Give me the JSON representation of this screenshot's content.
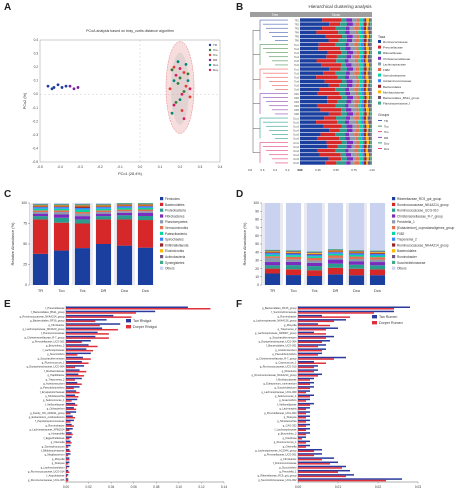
{
  "panel_letters": [
    "A",
    "B",
    "C",
    "D",
    "E",
    "F"
  ],
  "chart_data": [
    {
      "panel": "A",
      "type": "scatter",
      "title": "PCoA analysis based on bray_curtis distance algorithm",
      "xlabel": "PCo1 (28.4%)",
      "ylabel": "PCo2 (%)",
      "xlim": [
        -0.5,
        0.4
      ],
      "ylim": [
        -0.5,
        0.4
      ],
      "x_ticks": [
        "-0.5",
        "-0.4",
        "-0.3",
        "-0.2",
        "-0.1",
        "0.0",
        "0.1",
        "0.2",
        "0.3",
        "0.4"
      ],
      "y_ticks": [
        "0.4",
        "0.3",
        "0.2",
        "0.1",
        "0.0",
        "-0.1",
        "-0.2",
        "-0.3",
        "-0.4",
        "-0.5"
      ],
      "legend": [
        "TR",
        "Tco",
        "Tcs",
        "DR",
        "Dco",
        "Dcs"
      ],
      "colors": [
        "#1f3e9c",
        "#2e7d32",
        "#e53935",
        "#7b1fa2",
        "#00897b",
        "#d81b60"
      ],
      "series": [
        {
          "name": "TR",
          "points": [
            [
              -0.46,
              0.06
            ],
            [
              -0.43,
              0.05
            ],
            [
              -0.41,
              0.07
            ],
            [
              -0.39,
              0.05
            ],
            [
              -0.37,
              0.06
            ],
            [
              -0.44,
              0.04
            ]
          ]
        },
        {
          "name": "Tco",
          "points": [
            [
              0.16,
              0.18
            ],
            [
              0.2,
              0.12
            ],
            [
              0.22,
              0.02
            ],
            [
              0.18,
              -0.06
            ],
            [
              0.24,
              0.15
            ],
            [
              0.19,
              0.08
            ]
          ]
        },
        {
          "name": "Tcs",
          "points": [
            [
              0.17,
              0.2
            ],
            [
              0.23,
              0.06
            ],
            [
              0.21,
              -0.12
            ],
            [
              0.25,
              -0.02
            ],
            [
              0.15,
              0.04
            ],
            [
              0.22,
              0.16
            ]
          ]
        },
        {
          "name": "DR",
          "points": [
            [
              -0.33,
              0.04
            ],
            [
              -0.35,
              0.06
            ],
            [
              -0.31,
              0.05
            ]
          ]
        },
        {
          "name": "Dco",
          "points": [
            [
              0.17,
              0.1
            ],
            [
              0.23,
              0.22
            ],
            [
              0.2,
              -0.04
            ],
            [
              0.16,
              -0.14
            ],
            [
              0.24,
              0.1
            ],
            [
              0.19,
              0.24
            ]
          ]
        },
        {
          "name": "Dcs",
          "points": [
            [
              0.21,
              0.0
            ],
            [
              0.18,
              0.14
            ],
            [
              0.25,
              0.04
            ],
            [
              0.17,
              -0.08
            ],
            [
              0.22,
              -0.18
            ],
            [
              0.2,
              0.19
            ]
          ]
        }
      ]
    },
    {
      "panel": "B",
      "type": "bar",
      "title": "Hierarchical clustering analysis",
      "orientation": "horizontal-stacked",
      "header_left": "Tree",
      "header_right": "Taxon",
      "taxa": [
        "Ruminococcaceae",
        "Prevotellaceae",
        "Rikenellaceae",
        "Christensenellaceae",
        "Lachnospiraceae",
        "F082",
        "Spirochaetaceae",
        "Acidaminococcaceae",
        "Bacteroidales",
        "Muribaculaceae",
        "Bacteroidales_BS11_group",
        "Flavobacteriaceae_f"
      ],
      "taxa_legend_title": "Taxa",
      "taxa_colors": [
        "#1a3f9e",
        "#d62828",
        "#2a9d8f",
        "#7b2cbf",
        "#8d99ae",
        "#e76f51",
        "#06d6a0",
        "#3a86ff",
        "#9b2226",
        "#ffb703",
        "#6d597a",
        "#43aa8b"
      ],
      "groups_legend_title": "Groups",
      "groups": [
        "TR",
        "Tco",
        "Tcs",
        "DR",
        "Dco",
        "Dcs"
      ],
      "group_colors": [
        "#1f3e9c",
        "#2e7d32",
        "#e53935",
        "#7b1fa2",
        "#00897b",
        "#d81b60"
      ],
      "tree_ticks": [
        "0.8",
        "0.6",
        "0.4",
        "0.2",
        "0.0"
      ],
      "bar_ticks": [
        "0.00",
        "0.25",
        "0.50",
        "0.75",
        "1.00"
      ],
      "samples": [
        "TR1",
        "TR2",
        "TR3",
        "TR4",
        "TR5",
        "TR6",
        "Tco1",
        "Tco2",
        "Tco3",
        "Tco4",
        "Tco5",
        "Tco6",
        "Tcs1",
        "Tcs2",
        "Tcs3",
        "Tcs4",
        "Tcs5",
        "Tcs6",
        "DR1",
        "DR2",
        "DR3",
        "DR4",
        "DR5",
        "DR6",
        "Dco1",
        "Dco2",
        "Dco3",
        "Dco4",
        "Dco5",
        "Dco6",
        "Dcs1",
        "Dcs2",
        "Dcs3",
        "Dcs4",
        "Dcs5",
        "Dcs6"
      ]
    },
    {
      "panel": "C",
      "type": "bar",
      "orientation": "vertical-stacked",
      "ylabel": "Relative Abundance (%)",
      "ylim": [
        0,
        100
      ],
      "y_ticks": [
        "0",
        "25",
        "50",
        "75",
        "100"
      ],
      "categories": [
        "TR",
        "Tco",
        "Tcs",
        "DR",
        "Dco",
        "Dcs"
      ],
      "series": [
        {
          "name": "Firmicutes",
          "color": "#1a3f9e",
          "values": [
            38,
            42,
            45,
            50,
            48,
            46
          ]
        },
        {
          "name": "Bacteroidetes",
          "color": "#d62828",
          "values": [
            42,
            34,
            30,
            30,
            32,
            34
          ]
        },
        {
          "name": "Proteobacteria",
          "color": "#2a9d8f",
          "values": [
            4,
            6,
            5,
            4,
            5,
            5
          ]
        },
        {
          "name": "Fibrobacteres",
          "color": "#7b2cbf",
          "values": [
            3,
            4,
            4,
            3,
            3,
            4
          ]
        },
        {
          "name": "Planctomycetes",
          "color": "#8d99ae",
          "values": [
            2,
            3,
            3,
            2,
            2,
            2
          ]
        },
        {
          "name": "Verrucomicrobia",
          "color": "#e76f51",
          "values": [
            2,
            2,
            2,
            2,
            2,
            2
          ]
        },
        {
          "name": "Patescibacteria",
          "color": "#06d6a0",
          "values": [
            2,
            2,
            3,
            2,
            2,
            2
          ]
        },
        {
          "name": "Spirochaetes",
          "color": "#3a86ff",
          "values": [
            2,
            2,
            2,
            2,
            2,
            2
          ]
        },
        {
          "name": "Kiritimatiellaeota",
          "color": "#9b2226",
          "values": [
            1,
            1,
            2,
            1,
            1,
            1
          ]
        },
        {
          "name": "Elusimicrobia",
          "color": "#ffb703",
          "values": [
            1,
            1,
            1,
            1,
            1,
            1
          ]
        },
        {
          "name": "Actinobacteria",
          "color": "#6d597a",
          "values": [
            1,
            1,
            1,
            1,
            1,
            1
          ]
        },
        {
          "name": "Synergistetes",
          "color": "#43aa8b",
          "values": [
            1,
            1,
            1,
            1,
            1,
            1
          ]
        },
        {
          "name": "Others",
          "color": "#c9d3f0",
          "values": [
            1,
            1,
            1,
            1,
            0,
            0
          ]
        }
      ]
    },
    {
      "panel": "D",
      "type": "bar",
      "orientation": "vertical-stacked",
      "ylabel": "Relative Abundance (%)",
      "ylim": [
        0,
        100
      ],
      "y_ticks": [
        "0",
        "10",
        "20",
        "30",
        "40",
        "50",
        "60",
        "70",
        "80",
        "90",
        "100"
      ],
      "categories": [
        "TR",
        "Tco",
        "Tcs",
        "DR",
        "Dco",
        "Dcs"
      ],
      "series": [
        {
          "name": "Rikenellaceae_RC9_gut_group",
          "color": "#1a3f9e",
          "values": [
            14,
            12,
            11,
            13,
            12,
            12
          ]
        },
        {
          "name": "Ruminococcaceae_NK4A214_group",
          "color": "#d62828",
          "values": [
            6,
            7,
            7,
            8,
            8,
            7
          ]
        },
        {
          "name": "Ruminococcaceae_UCG-010",
          "color": "#2a9d8f",
          "values": [
            4,
            5,
            5,
            5,
            5,
            5
          ]
        },
        {
          "name": "Christensenellaceae_R-7_group",
          "color": "#7b2cbf",
          "values": [
            4,
            4,
            4,
            5,
            4,
            4
          ]
        },
        {
          "name": "Prevotella_1",
          "color": "#8d99ae",
          "values": [
            5,
            3,
            3,
            2,
            3,
            3
          ]
        },
        {
          "name": "[Eubacterium]_coprostanoligenes_group",
          "color": "#e76f51",
          "values": [
            2,
            3,
            3,
            3,
            3,
            3
          ]
        },
        {
          "name": "F082",
          "color": "#06d6a0",
          "values": [
            2,
            2,
            2,
            2,
            2,
            2
          ]
        },
        {
          "name": "Treponema_2",
          "color": "#3a86ff",
          "values": [
            2,
            2,
            2,
            2,
            2,
            2
          ]
        },
        {
          "name": "Ruminococcaceae_NK4A214_group",
          "color": "#9b2226",
          "values": [
            1,
            1,
            1,
            1,
            1,
            1
          ]
        },
        {
          "name": "Bacteroidales",
          "color": "#ffb703",
          "values": [
            1,
            1,
            1,
            1,
            1,
            1
          ]
        },
        {
          "name": "Ruminobacter",
          "color": "#6d597a",
          "values": [
            1,
            1,
            1,
            1,
            1,
            1
          ]
        },
        {
          "name": "Succinivibrionaceae",
          "color": "#43aa8b",
          "values": [
            1,
            1,
            1,
            1,
            1,
            1
          ]
        },
        {
          "name": "Others",
          "color": "#c9d3f0",
          "values": [
            57,
            57,
            59,
            56,
            58,
            58
          ]
        }
      ]
    },
    {
      "panel": "E",
      "type": "bar",
      "orientation": "horizontal-grouped",
      "legend": [
        "Tan Rhdgut",
        "Dorper Rhdgut"
      ],
      "colors": [
        "#2b3a9c",
        "#e0303a"
      ],
      "xlim": [
        0,
        0.14
      ],
      "x_ticks": [
        "0.00",
        "0.02",
        "0.04",
        "0.06",
        "0.08",
        "0.10",
        "0.12",
        "0.14"
      ],
      "categories": [
        "f_Prevotellaceae",
        "f_Bacteroidales_BS11_group",
        "g_Ruminococcaceae_NK4A214_group",
        "g_Bacteroidales_RF16_group",
        "g_Fibrobacter",
        "g_Lachnospiraceae_NK3A20_group",
        "f_Ruminococcaceae",
        "g_Christensenellaceae_R-7_group",
        "g_Prevotellaceae_UCG-001",
        "g_Butyrivibrio_2",
        "f_Lachnospiraceae",
        "g_Succinivibrio",
        "g_Saccharofermentans",
        "g_Ruminococcus_1",
        "g_Erysipelotrichaceae_UCG-004",
        "f_Muribaculaceae",
        "g_Papillibacter",
        "g_Treponema_2",
        "g_Acetitomaculum",
        "g_Pseudobutyrivibrio",
        "f_Erysipelotrichaceae",
        "g_Shuttleworthia",
        "g_Selenomonas_1",
        "f_Veillonellaceae",
        "g_Oribacterium",
        "g_Family_XIII_AD3011_group",
        "g_Eubacterium_oxidoreducens",
        "f_Peptostreptococcaceae",
        "g_Ruminobacter",
        "g_Lachnospiraceae_XPB1014",
        "g_Howardella",
        "f_Eggerthellaceae",
        "g_Olsenella",
        "g_Syntrophococcus",
        "f_Bifidobacteriaceae",
        "g_Mogibacterium",
        "g_Moryella",
        "g_Sharpea",
        "g_Lachnoclostridium",
        "g_Ruminococcaceae_UCG-014",
        "f_Atopobiaceae",
        "g_Ruminococcaceae_UCG-005"
      ],
      "series": [
        {
          "name": "Tan Rhdgut",
          "values": [
            0.108,
            0.079,
            0.042,
            0.036,
            0.048,
            0.032,
            0.028,
            0.026,
            0.022,
            0.02,
            0.018,
            0.022,
            0.015,
            0.014,
            0.016,
            0.012,
            0.011,
            0.014,
            0.01,
            0.012,
            0.009,
            0.008,
            0.01,
            0.008,
            0.007,
            0.009,
            0.006,
            0.007,
            0.005,
            0.006,
            0.005,
            0.005,
            0.004,
            0.004,
            0.003,
            0.004,
            0.003,
            0.003,
            0.003,
            0.002,
            0.002,
            0.002
          ]
        },
        {
          "name": "Dorper Rhdgut",
          "values": [
            0.128,
            0.062,
            0.058,
            0.026,
            0.03,
            0.046,
            0.038,
            0.038,
            0.014,
            0.028,
            0.024,
            0.01,
            0.022,
            0.02,
            0.008,
            0.018,
            0.016,
            0.008,
            0.014,
            0.007,
            0.012,
            0.011,
            0.005,
            0.01,
            0.009,
            0.004,
            0.008,
            0.004,
            0.007,
            0.003,
            0.006,
            0.003,
            0.005,
            0.002,
            0.004,
            0.002,
            0.003,
            0.002,
            0.001,
            0.003,
            0.001,
            0.002
          ]
        }
      ]
    },
    {
      "panel": "F",
      "type": "bar",
      "orientation": "horizontal-grouped",
      "legend": [
        "Tan Rumen",
        "Dorper Rumen"
      ],
      "colors": [
        "#2b3a9c",
        "#e0303a"
      ],
      "xlim": [
        0,
        0.03
      ],
      "x_ticks": [
        "0.00",
        "0.01",
        "0.02",
        "0.03"
      ],
      "categories": [
        "g_Bacteroidales_RF16_group",
        "f_Succinivibrionaceae",
        "g_Ruminobacter",
        "g_Lachnospiraceae_NK4A136_group",
        "g_Moryella",
        "g_Treponema_2",
        "g_Lachnospiraceae_ND3007_group",
        "g_Saccharofermentans",
        "g_Erysipelotrichaceae_UCG-004",
        "f_Bacteroidales_UCG-001",
        "g_Acetitomaculum",
        "g_Pseudobutyrivibrio",
        "g_Christensenellaceae_R-7_group",
        "g_Coprococcus_1",
        "g_Ruminococcaceae_UCG-010",
        "g_Roseburia",
        "g_Ruminococcaceae_NK4A214_group",
        "f_Muribaculaceae",
        "g_Eubacterium_ruminantium",
        "g_Succiniclasticum",
        "g_Lachnospiraceae_UCG-009",
        "g_Selenomonas_1",
        "g_Anaerovibrio",
        "f_Veillonellaceae",
        "g_Lachnospira",
        "g_Prevotellaceae_UCG-003",
        "g_Sharpea",
        "g_Shuttleworthia",
        "g_CAG-352",
        "f_Lachnospiraceae",
        "g_Butyrivibrio_2",
        "g_Flexilinea",
        "g_Ruminococcus_1",
        "g_Olsenella",
        "g_Lachnospiraceae_AC2044_group",
        "g_Prevotellaceae_UCG-001",
        "g_Fibrobacter",
        "f_Ruminococcaceae",
        "g_Succinivibrio",
        "g_Prevotella_1",
        "g_Rikenellaceae_RC9_gut_group",
        "g_Succinivibrionaceae_UCG-002"
      ],
      "series": [
        {
          "name": "Tan Rumen",
          "values": [
            0.028,
            0.024,
            0.006,
            0.012,
            0.005,
            0.01,
            0.004,
            0.009,
            0.008,
            0.007,
            0.007,
            0.006,
            0.012,
            0.004,
            0.005,
            0.005,
            0.006,
            0.004,
            0.004,
            0.004,
            0.003,
            0.004,
            0.003,
            0.004,
            0.003,
            0.003,
            0.003,
            0.003,
            0.003,
            0.003,
            0.003,
            0.002,
            0.003,
            0.003,
            0.006,
            0.006,
            0.009,
            0.01,
            0.012,
            0.013,
            0.014,
            0.026
          ]
        },
        {
          "name": "Dorper Rumen",
          "values": [
            0.024,
            0.019,
            0.013,
            0.009,
            0.008,
            0.007,
            0.007,
            0.007,
            0.006,
            0.005,
            0.006,
            0.005,
            0.009,
            0.007,
            0.004,
            0.004,
            0.005,
            0.003,
            0.003,
            0.003,
            0.002,
            0.003,
            0.002,
            0.003,
            0.002,
            0.002,
            0.002,
            0.002,
            0.002,
            0.002,
            0.002,
            0.001,
            0.002,
            0.002,
            0.004,
            0.004,
            0.006,
            0.008,
            0.011,
            0.01,
            0.012,
            0.022
          ]
        }
      ]
    }
  ]
}
